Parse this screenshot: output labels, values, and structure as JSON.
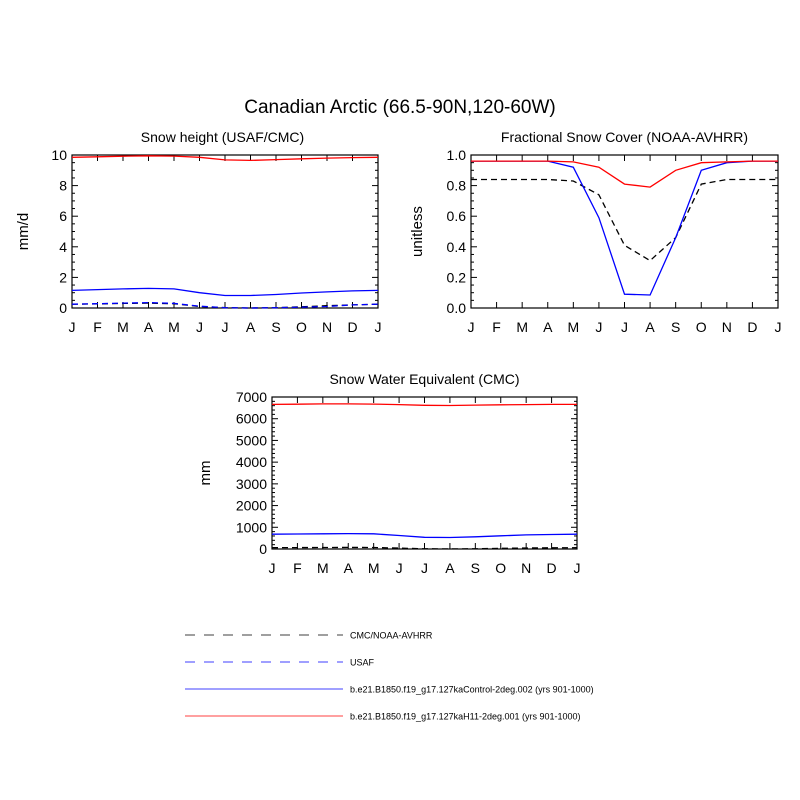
{
  "figure_title": "Canadian Arctic (66.5-90N,120-60W)",
  "months": [
    "J",
    "F",
    "M",
    "A",
    "M",
    "J",
    "J",
    "A",
    "S",
    "O",
    "N",
    "D",
    "J"
  ],
  "legend": {
    "items": [
      {
        "label": "CMC/NOAA-AVHRR",
        "color": "#000000",
        "dash": "dashed"
      },
      {
        "label": "USAF",
        "color": "#0000ff",
        "dash": "dashed"
      },
      {
        "label": "b.e21.B1850.f19_g17.127kaControl-2deg.002 (yrs 901-1000)",
        "color": "#0000ff",
        "dash": "solid"
      },
      {
        "label": "b.e21.B1850.f19_g17.127kaH11-2deg.001 (yrs 901-1000)",
        "color": "#ff0000",
        "dash": "solid"
      }
    ]
  },
  "chart_data": [
    {
      "type": "line",
      "title": "Snow height (USAF/CMC)",
      "xlabel": "",
      "ylabel": "mm/d",
      "ylim": [
        0,
        10
      ],
      "yticks": [
        "0",
        "2",
        "4",
        "6",
        "8",
        "10"
      ],
      "yminor": 0.5,
      "x": [
        "J",
        "F",
        "M",
        "A",
        "M",
        "J",
        "J",
        "A",
        "S",
        "O",
        "N",
        "D",
        "J"
      ],
      "series": [
        {
          "name": "CMC/NOAA-AVHRR",
          "color": "#000000",
          "dash": "dashed",
          "values": [
            0.25,
            0.27,
            0.3,
            0.32,
            0.28,
            0.1,
            0.02,
            0.0,
            0.02,
            0.08,
            0.15,
            0.2,
            0.25
          ]
        },
        {
          "name": "USAF",
          "color": "#0000ff",
          "dash": "dashed",
          "values": [
            0.25,
            0.28,
            0.32,
            0.35,
            0.3,
            0.12,
            0.02,
            0.0,
            0.02,
            0.05,
            0.1,
            0.2,
            0.25
          ]
        },
        {
          "name": "b.e21.B1850.f19_g17.127kaControl-2deg.002 (yrs 901-1000)",
          "color": "#0000ff",
          "dash": "solid",
          "values": [
            1.15,
            1.2,
            1.25,
            1.28,
            1.25,
            1.0,
            0.82,
            0.82,
            0.88,
            0.98,
            1.05,
            1.12,
            1.15
          ]
        },
        {
          "name": "b.e21.B1850.f19_g17.127kaH11-2deg.001 (yrs 901-1000)",
          "color": "#ff0000",
          "dash": "solid",
          "values": [
            9.85,
            9.88,
            9.92,
            9.95,
            9.93,
            9.85,
            9.68,
            9.65,
            9.7,
            9.75,
            9.8,
            9.83,
            9.85
          ]
        }
      ]
    },
    {
      "type": "line",
      "title": "Fractional Snow Cover (NOAA-AVHRR)",
      "xlabel": "",
      "ylabel": "unitless",
      "ylim": [
        0,
        1
      ],
      "yticks": [
        "0.0",
        "0.2",
        "0.4",
        "0.6",
        "0.8",
        "1.0"
      ],
      "yminor": 0.05,
      "x": [
        "J",
        "F",
        "M",
        "A",
        "M",
        "J",
        "J",
        "A",
        "S",
        "O",
        "N",
        "D",
        "J"
      ],
      "series": [
        {
          "name": "CMC/NOAA-AVHRR",
          "color": "#000000",
          "dash": "dashed",
          "values": [
            0.84,
            0.84,
            0.84,
            0.84,
            0.83,
            0.74,
            0.41,
            0.31,
            0.46,
            0.81,
            0.84,
            0.84,
            0.84
          ]
        },
        {
          "name": "b.e21.B1850.f19_g17.127kaControl-2deg.002 (yrs 901-1000)",
          "color": "#0000ff",
          "dash": "solid",
          "values": [
            0.96,
            0.96,
            0.96,
            0.96,
            0.92,
            0.59,
            0.09,
            0.085,
            0.46,
            0.9,
            0.95,
            0.96,
            0.96
          ]
        },
        {
          "name": "b.e21.B1850.f19_g17.127kaH11-2deg.001 (yrs 901-1000)",
          "color": "#ff0000",
          "dash": "solid",
          "values": [
            0.96,
            0.96,
            0.96,
            0.96,
            0.955,
            0.92,
            0.81,
            0.79,
            0.9,
            0.95,
            0.955,
            0.96,
            0.96
          ]
        }
      ]
    },
    {
      "type": "line",
      "title": "Snow Water Equivalent (CMC)",
      "xlabel": "",
      "ylabel": "mm",
      "ylim": [
        0,
        7000
      ],
      "yticks": [
        "0",
        "1000",
        "2000",
        "3000",
        "4000",
        "5000",
        "6000",
        "7000"
      ],
      "yminor": 200,
      "x": [
        "J",
        "F",
        "M",
        "A",
        "M",
        "J",
        "J",
        "A",
        "S",
        "O",
        "N",
        "D",
        "J"
      ],
      "series": [
        {
          "name": "CMC/NOAA-AVHRR",
          "color": "#000000",
          "dash": "dashed",
          "values": [
            60,
            65,
            70,
            75,
            70,
            40,
            10,
            5,
            10,
            30,
            45,
            55,
            60
          ]
        },
        {
          "name": "b.e21.B1850.f19_g17.127kaControl-2deg.002 (yrs 901-1000)",
          "color": "#0000ff",
          "dash": "solid",
          "values": [
            680,
            690,
            700,
            710,
            700,
            620,
            540,
            530,
            560,
            610,
            650,
            670,
            680
          ]
        },
        {
          "name": "b.e21.B1850.f19_g17.127kaH11-2deg.001 (yrs 901-1000)",
          "color": "#ff0000",
          "dash": "solid",
          "values": [
            6660,
            6670,
            6680,
            6680,
            6675,
            6650,
            6620,
            6610,
            6625,
            6640,
            6650,
            6660,
            6660
          ]
        }
      ]
    }
  ]
}
